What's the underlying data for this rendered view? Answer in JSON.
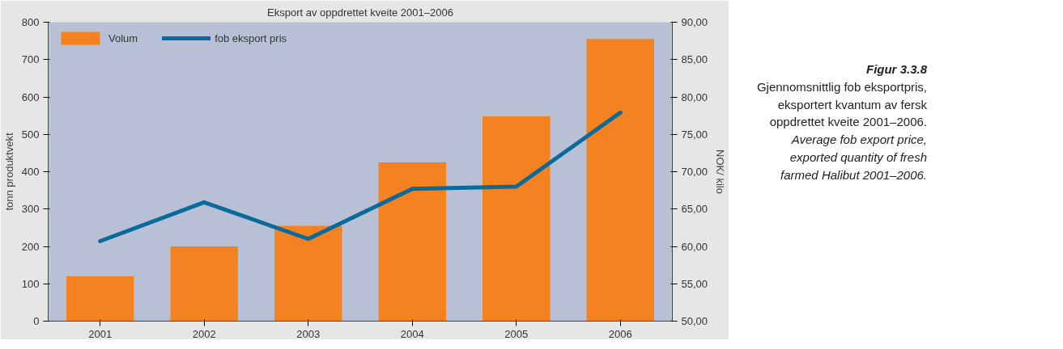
{
  "chart_data": {
    "type": "bar",
    "title": "Eksport av oppdrettet kveite 2001–2006",
    "categories": [
      "2001",
      "2002",
      "2003",
      "2004",
      "2005",
      "2006"
    ],
    "series": [
      {
        "name": "Volum",
        "color": "#f58220",
        "values": [
          120,
          200,
          255,
          425,
          548,
          755
        ]
      },
      {
        "name": "fob eksport pris",
        "type": "line",
        "axis": "y2",
        "color": "#0b6a9c",
        "values": [
          60.7,
          65.9,
          61.0,
          67.7,
          68.0,
          77.9
        ]
      }
    ],
    "ylabel": "tonn produktvekt",
    "y2label": "NOK/ kilo",
    "ylim": [
      0,
      800
    ],
    "yticks": [
      0,
      100,
      200,
      300,
      400,
      500,
      600,
      700,
      800
    ],
    "y2lim": [
      50,
      90
    ],
    "y2ticks": [
      {
        "value": 50,
        "label": "50,00"
      },
      {
        "value": 55,
        "label": "55,00"
      },
      {
        "value": 60,
        "label": "60,00"
      },
      {
        "value": 65,
        "label": "65,00"
      },
      {
        "value": 70,
        "label": "70,00"
      },
      {
        "value": 75,
        "label": "75,00"
      },
      {
        "value": 80,
        "label": "80,00"
      },
      {
        "value": 85,
        "label": "85,00"
      },
      {
        "value": 90,
        "label": "90,00"
      }
    ],
    "grid": false,
    "legend": "top left",
    "marker": "none",
    "line_style": "solid",
    "annotations": [
      "Figur 3.3.8",
      "Gjennomsnittlig fob eksportpris, eksportert kvantum av fersk oppdrettet kveite 2001–2006.",
      "Average fob export price, exported quantity of fresh farmed Halibut 2001–2006."
    ]
  }
}
